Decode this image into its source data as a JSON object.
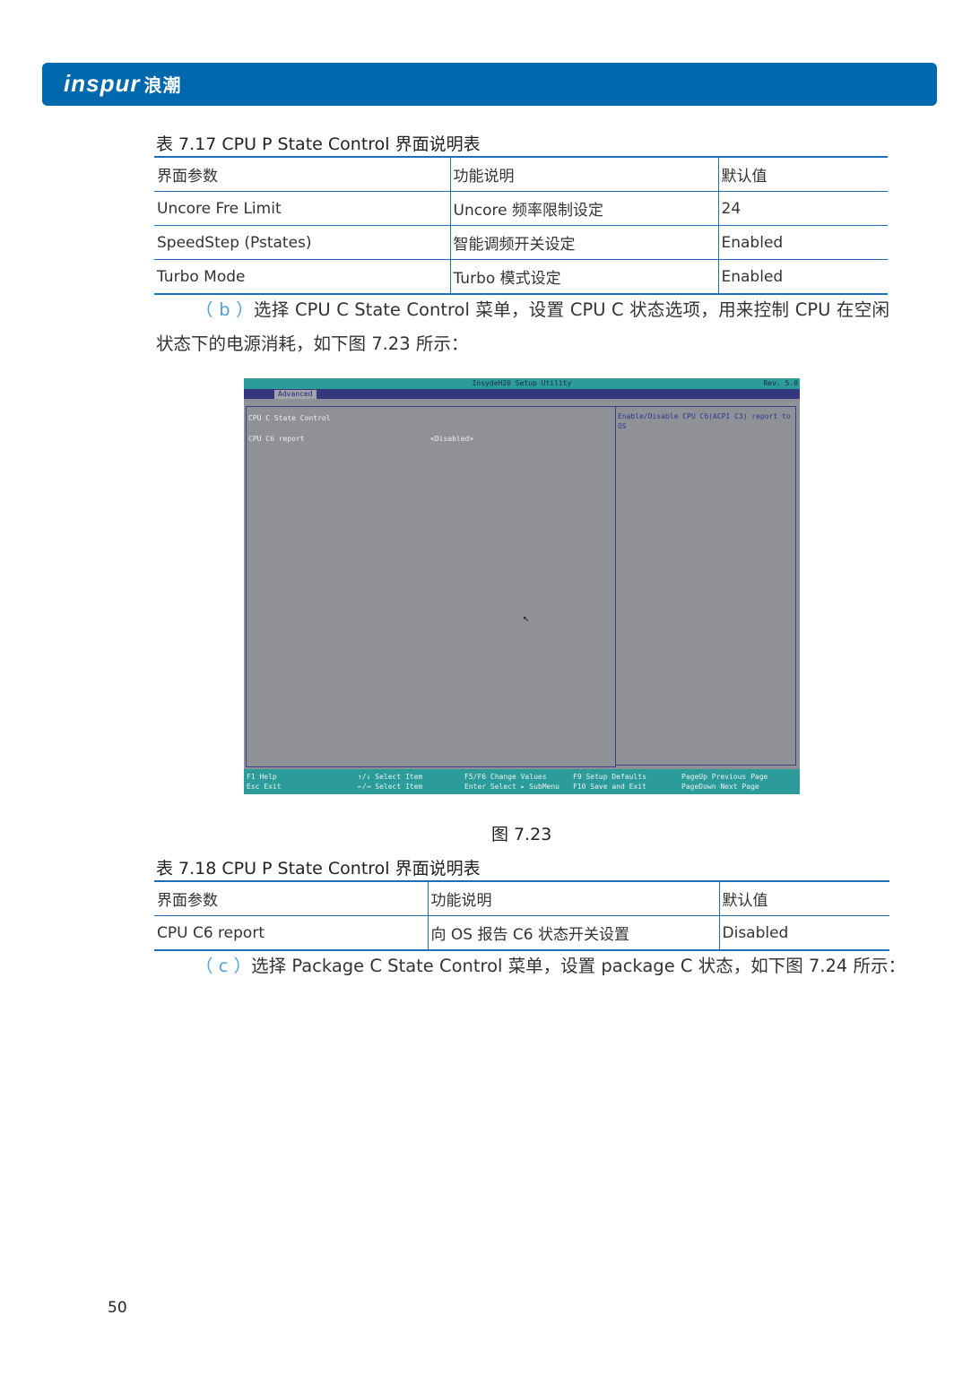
{
  "header": {
    "logo_text": "inspur",
    "logo_cn": "浪潮",
    "brand_color": "#0068ad"
  },
  "table1": {
    "caption": "表 7.17 CPU P State Control 界面说明表",
    "headers": [
      "界面参数",
      "功能说明",
      "默认值"
    ],
    "rows": [
      [
        "Uncore Fre Limit",
        "Uncore 频率限制设定",
        "24"
      ],
      [
        "SpeedStep (Pstates)",
        "智能调频开关设定",
        "Enabled"
      ],
      [
        "Turbo Mode",
        "Turbo 模式设定",
        "Enabled"
      ]
    ]
  },
  "para_b": {
    "mark": "（ b ）",
    "text": "选择 CPU C State Control 菜单，设置 CPU C 状态选项，用来控制 CPU 在空闲状态下的电源消耗，如下图 7.23 所示："
  },
  "bios": {
    "title": "InsydeH20 Setup Utility",
    "rev": "Rev. 5.0",
    "tab": "Advanced",
    "section": "CPU C State Control",
    "item_label": "CPU C6 report",
    "item_value": "<Disabled>",
    "help": "Enable/Disable CPU C6(ACPI C3) report to OS",
    "keys": [
      [
        "F1  Help",
        "Esc Exit"
      ],
      [
        "↑/↓ Select Item",
        "←/→ Select Item"
      ],
      [
        "F5/F6 Change Values",
        "Enter Select ▸ SubMenu"
      ],
      [
        "F9  Setup Defaults",
        "F10 Save and Exit"
      ],
      [
        "PageUp   Previous Page",
        "PageDown Next Page"
      ]
    ]
  },
  "figure_caption": "图 7.23",
  "table2": {
    "caption": "表 7.18 CPU P State Control 界面说明表",
    "headers": [
      "界面参数",
      "功能说明",
      "默认值"
    ],
    "rows": [
      [
        "CPU C6 report",
        "向 OS 报告 C6 状态开关设置",
        "Disabled"
      ]
    ]
  },
  "para_c": {
    "mark": "（ c ）",
    "text": "选择 Package C State Control 菜单，设置 package C 状态，如下图 7.24 所示："
  },
  "page_number": "50"
}
